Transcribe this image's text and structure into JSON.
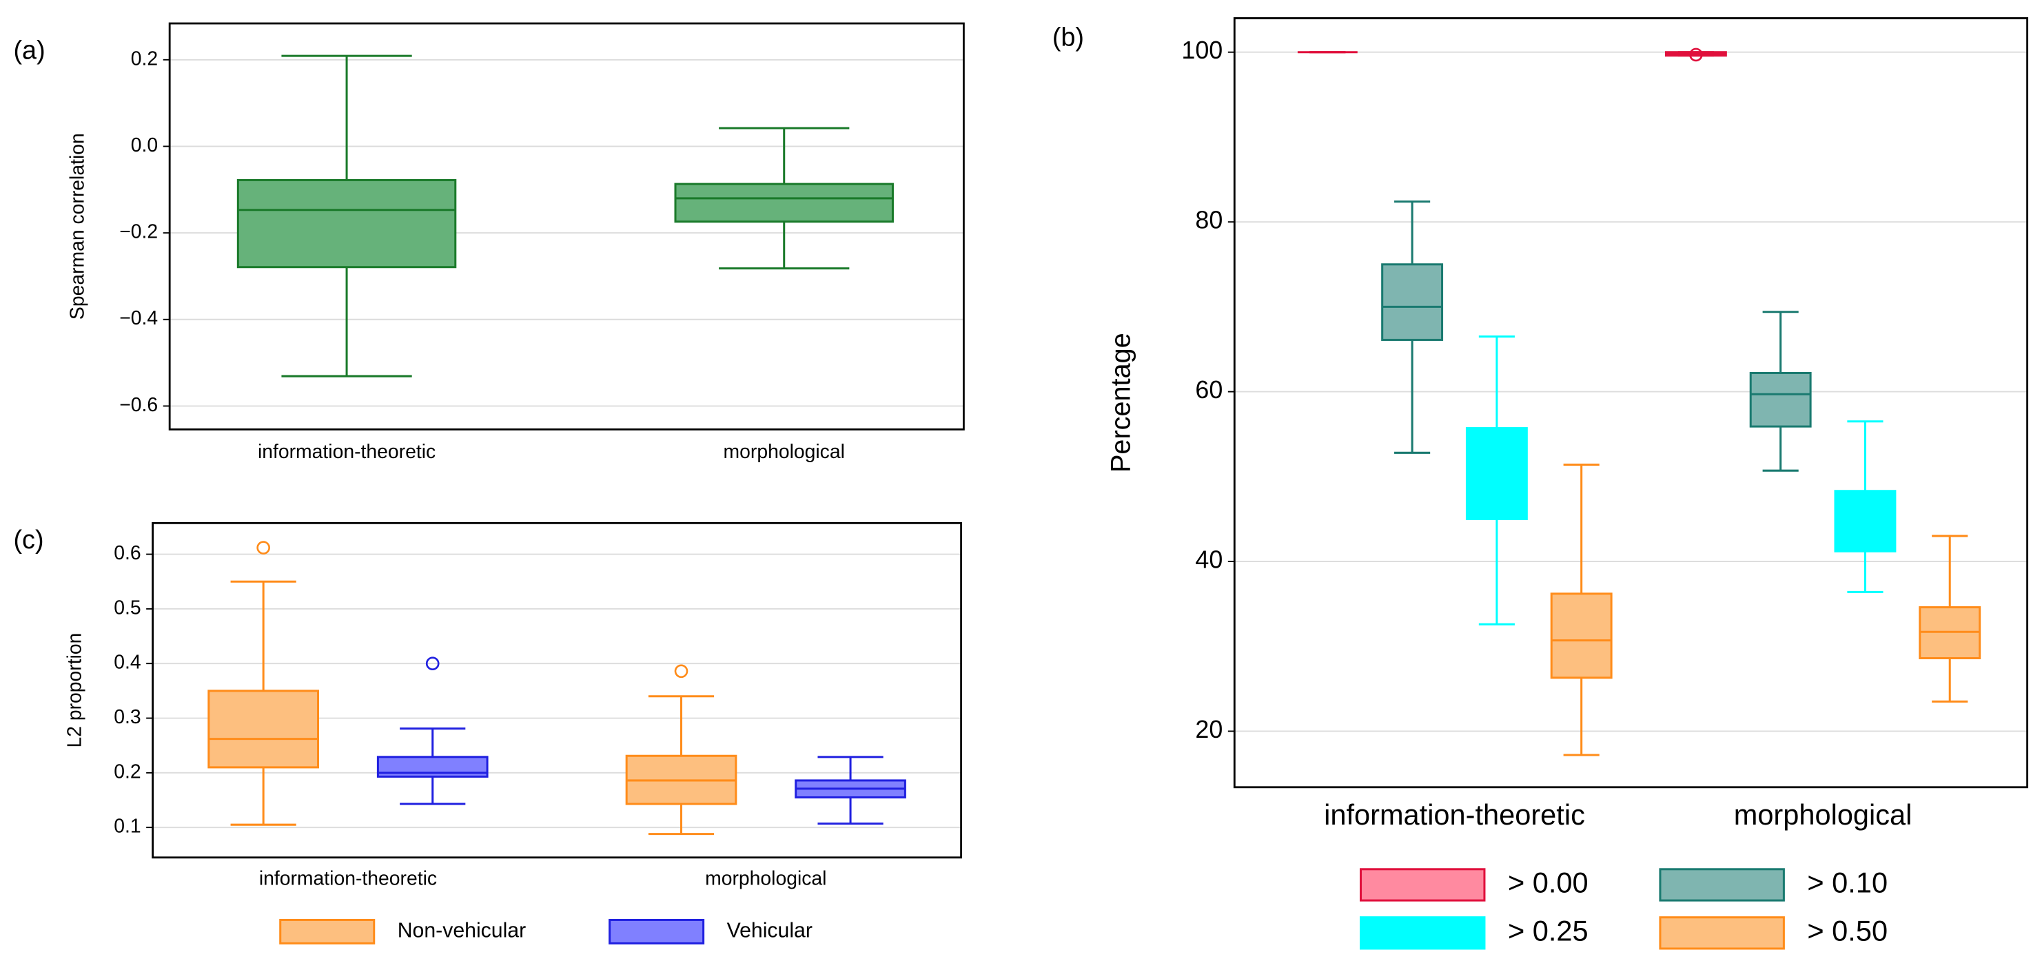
{
  "chart_data": [
    {
      "type": "box",
      "panel_label": "(a)",
      "ylabel": "Spearman correlation",
      "categories": [
        "information-theoretic",
        "morphological"
      ],
      "ylim": [
        -0.654,
        0.284
      ],
      "yticks": [
        0.2,
        {
          "value": 0,
          "label": "0.0"
        },
        {
          "value": -0.2,
          "label": "−0.2"
        },
        {
          "value": -0.4,
          "label": "−0.4"
        },
        {
          "value": -0.6,
          "label": "−0.6"
        }
      ],
      "grid": true,
      "series": [
        {
          "color": "#66b27a",
          "stroke": "#1a7a2a",
          "values": [
            {
              "min": -0.531,
              "q1": -0.279,
              "median": -0.147,
              "q3": -0.078,
              "max": 0.209
            },
            {
              "min": -0.282,
              "q1": -0.174,
              "median": -0.12,
              "q3": -0.087,
              "max": 0.042
            }
          ]
        }
      ]
    },
    {
      "type": "box",
      "panel_label": "(b)",
      "ylabel": "Percentage",
      "categories": [
        "information-theoretic",
        "morphological"
      ],
      "ylim": [
        13.4,
        104
      ],
      "yticks": [
        20,
        40,
        60,
        80,
        100
      ],
      "grid": true,
      "legend": "bottom",
      "series": [
        {
          "name": "> 0.00",
          "color": "#ff8aa0",
          "stroke": "#e0103c",
          "values": [
            {
              "min": 100,
              "q1": 100,
              "median": 100,
              "q3": 100,
              "max": 100
            },
            {
              "min": 99.6,
              "q1": 99.6,
              "median": 99.8,
              "q3": 100,
              "max": 100,
              "outliers": [
                99.7
              ]
            }
          ]
        },
        {
          "name": "> 0.10",
          "color": "#7fb5b0",
          "stroke": "#1a7a70",
          "values": [
            {
              "min": 52.8,
              "q1": 66.1,
              "median": 70,
              "q3": 75,
              "max": 82.4
            },
            {
              "min": 50.7,
              "q1": 55.9,
              "median": 59.7,
              "q3": 62.2,
              "max": 69.4
            }
          ]
        },
        {
          "name": "> 0.25",
          "color": "#00ffff",
          "stroke": "#00ffff",
          "values": [
            {
              "min": 32.6,
              "q1": 45,
              "median": 50,
              "q3": 55.7,
              "max": 66.5
            },
            {
              "min": 36.4,
              "q1": 41.2,
              "median": 44,
              "q3": 48.3,
              "max": 56.5
            }
          ]
        },
        {
          "name": "> 0.50",
          "color": "#fdbf7f",
          "stroke": "#ff8c1a",
          "values": [
            {
              "min": 17.2,
              "q1": 26.3,
              "median": 30.7,
              "q3": 36.2,
              "max": 51.4
            },
            {
              "min": 23.5,
              "q1": 28.6,
              "median": 31.7,
              "q3": 34.6,
              "max": 43
            }
          ]
        }
      ]
    },
    {
      "type": "box",
      "panel_label": "(c)",
      "ylabel": "L2 proportion",
      "categories": [
        "information-theoretic",
        "morphological"
      ],
      "ylim": [
        0.045,
        0.657
      ],
      "yticks": [
        0.1,
        0.2,
        0.3,
        0.4,
        0.5,
        0.6
      ],
      "grid": true,
      "legend": "bottom",
      "series": [
        {
          "name": "Non-vehicular",
          "color": "#fdbf7f",
          "stroke": "#ff8c1a",
          "values": [
            {
              "min": 0.105,
              "q1": 0.21,
              "median": 0.262,
              "q3": 0.35,
              "max": 0.55,
              "outliers": [
                0.612
              ]
            },
            {
              "min": 0.088,
              "q1": 0.143,
              "median": 0.186,
              "q3": 0.231,
              "max": 0.34,
              "outliers": [
                0.386
              ]
            }
          ]
        },
        {
          "name": "Vehicular",
          "color": "#8080ff",
          "stroke": "#2020e0",
          "values": [
            {
              "min": 0.143,
              "q1": 0.193,
              "median": 0.2,
              "q3": 0.229,
              "max": 0.281,
              "outliers": [
                0.4
              ]
            },
            {
              "min": 0.107,
              "q1": 0.155,
              "median": 0.171,
              "q3": 0.186,
              "max": 0.229
            }
          ]
        }
      ]
    }
  ]
}
